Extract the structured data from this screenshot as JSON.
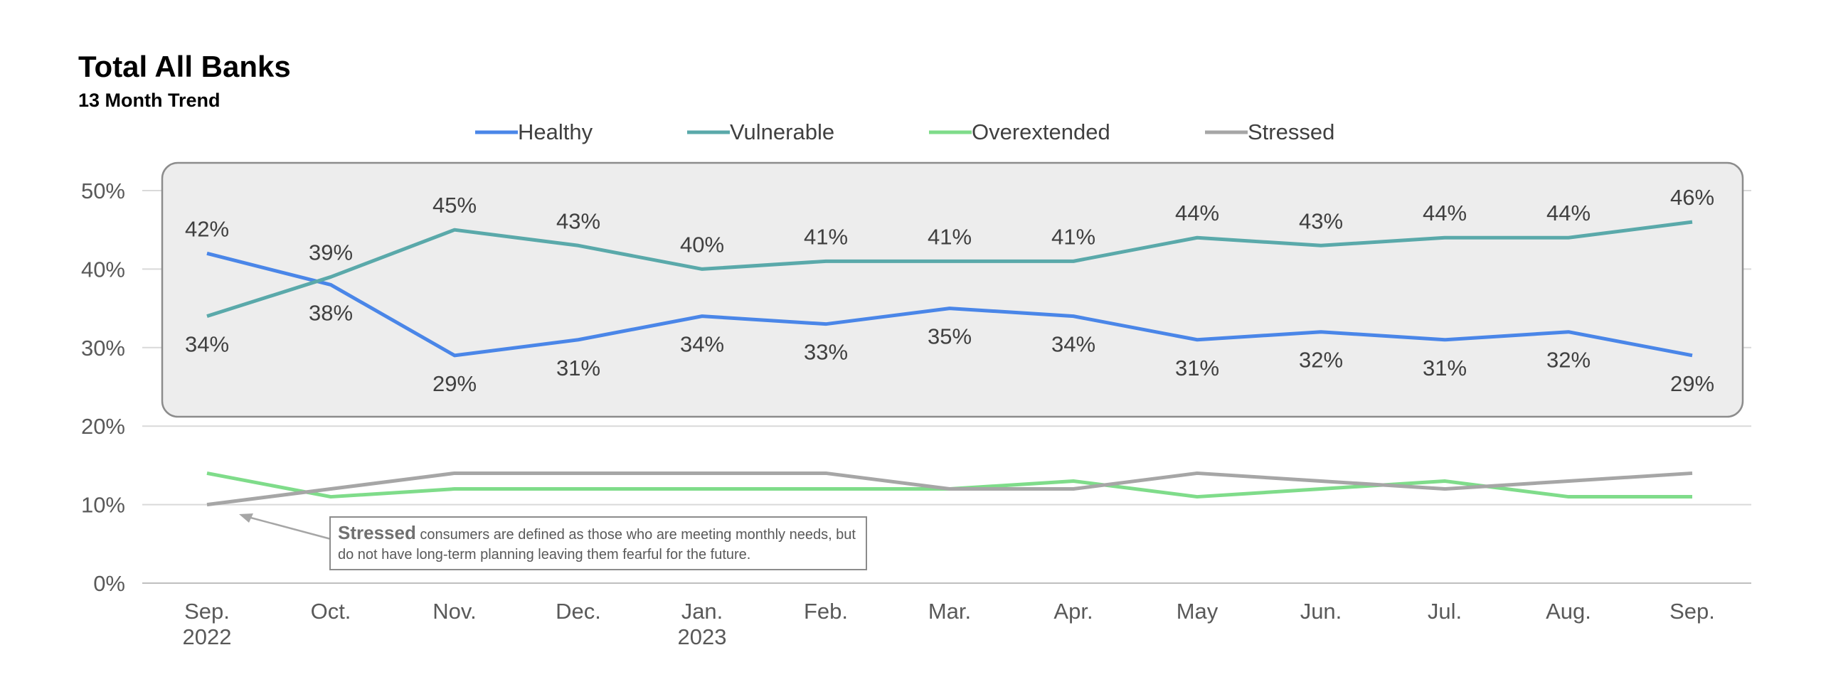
{
  "chart_data": {
    "type": "line",
    "title": "Total All Banks",
    "subtitle": "13 Month Trend",
    "categories": [
      "Sep.\n2022",
      "Oct.",
      "Nov.",
      "Dec.",
      "Jan.\n2023",
      "Feb.",
      "Mar.",
      "Apr.",
      "May",
      "Jun.",
      "Jul.",
      "Aug.",
      "Sep."
    ],
    "ylim": [
      0,
      50
    ],
    "yticks": [
      "0%",
      "10%",
      "20%",
      "30%",
      "40%",
      "50%"
    ],
    "grid": true,
    "legend_position": "top",
    "series": [
      {
        "name": "Healthy",
        "color": "#4a86e8",
        "values": [
          42,
          38,
          29,
          31,
          34,
          33,
          35,
          34,
          31,
          32,
          31,
          32,
          29
        ],
        "labels": [
          "42%",
          "38%",
          "29%",
          "31%",
          "34%",
          "33%",
          "35%",
          "34%",
          "31%",
          "32%",
          "31%",
          "32%",
          "29%"
        ]
      },
      {
        "name": "Vulnerable",
        "color": "#5aa9aa",
        "values": [
          34,
          39,
          45,
          43,
          40,
          41,
          41,
          41,
          44,
          43,
          44,
          44,
          46
        ],
        "labels": [
          "34%",
          "39%",
          "45%",
          "43%",
          "40%",
          "41%",
          "41%",
          "41%",
          "44%",
          "43%",
          "44%",
          "44%",
          "46%"
        ]
      },
      {
        "name": "Overextended",
        "color": "#7fdc8a",
        "values": [
          14,
          11,
          12,
          12,
          12,
          12,
          12,
          13,
          11,
          12,
          13,
          11,
          11
        ]
      },
      {
        "name": "Stressed",
        "color": "#a6a6a6",
        "values": [
          10,
          12,
          14,
          14,
          14,
          14,
          12,
          12,
          14,
          13,
          12,
          13,
          14
        ]
      }
    ],
    "annotation": {
      "bold": "Stressed",
      "text": " consumers are defined as those who are meeting monthly needs, but do not have long-term planning leaving them fearful for the future."
    }
  }
}
